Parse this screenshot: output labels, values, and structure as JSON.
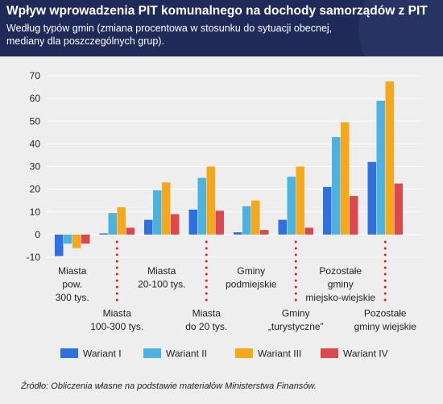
{
  "header": {
    "title": "Wpływ wprowadzenia PIT komunalnego na dochody samorządów z PIT",
    "subtitle": "Według typów gmin (zmiana procentowa w stosunku do sytuacji obecnej, mediany dla poszczególnych grup)."
  },
  "source": "Źródło: Obliczenia własne na podstawie materiałów Ministerstwa Finansów.",
  "chart_data": {
    "type": "bar",
    "title": "Wpływ wprowadzenia PIT komunalnego na dochody samorządów z PIT",
    "xlabel": "",
    "ylabel": "",
    "ylim": [
      -10,
      70
    ],
    "yticks": [
      -10,
      0,
      10,
      20,
      30,
      40,
      50,
      60,
      70
    ],
    "grid": true,
    "legend_position": "bottom",
    "categories": [
      [
        "Miasta",
        "pow.",
        "300 tys."
      ],
      [
        "Miasta",
        "100-300 tys."
      ],
      [
        "Miasta",
        "20-100 tys."
      ],
      [
        "Miasta",
        "do 20 tys."
      ],
      [
        "Gminy",
        "podmiejskie"
      ],
      [
        "Gminy",
        "„turystyczne”"
      ],
      [
        "Pozostałe",
        "gminy",
        "miejsko-wiejskie"
      ],
      [
        "Pozostałe",
        "gminy wiejskie"
      ]
    ],
    "series": [
      {
        "name": "Wariant I",
        "color": "#2f6fe0",
        "values": [
          -9.5,
          0.5,
          6.5,
          11,
          1,
          6.5,
          21,
          32
        ]
      },
      {
        "name": "Wariant II",
        "color": "#4bb3dd",
        "values": [
          -4,
          9.5,
          19.5,
          25,
          12.5,
          25.5,
          43,
          59
        ]
      },
      {
        "name": "Wariant III",
        "color": "#f5a81c",
        "values": [
          -6,
          12,
          23,
          30,
          15,
          30,
          49.5,
          67.5
        ]
      },
      {
        "name": "Wariant IV",
        "color": "#d9494e",
        "values": [
          -4,
          3,
          9,
          10.5,
          2,
          3,
          17,
          22.5
        ]
      }
    ]
  }
}
